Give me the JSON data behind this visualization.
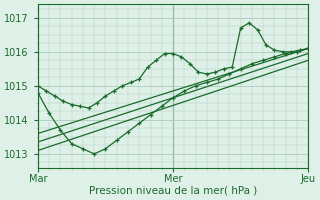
{
  "xlabel": "Pression niveau de la mer( hPa )",
  "bg_color": "#dff0e8",
  "grid_color": "#aaccbb",
  "line_color": "#1a6b2a",
  "xtick_labels": [
    "Mar",
    "Mer",
    "Jeu"
  ],
  "xtick_positions": [
    0,
    48,
    96
  ],
  "ylim": [
    1012.6,
    1017.4
  ],
  "yticks": [
    1013,
    1014,
    1015,
    1016,
    1017
  ],
  "xlim": [
    0,
    96
  ],
  "line1_x": [
    0,
    3,
    6,
    9,
    12,
    15,
    18,
    21,
    24,
    27,
    30,
    33,
    36,
    39,
    42,
    45,
    48,
    51,
    54,
    57,
    60,
    63,
    66,
    69,
    72,
    75,
    78,
    81,
    84,
    87,
    90,
    93,
    96
  ],
  "line1_y": [
    1015.0,
    1014.85,
    1014.7,
    1014.55,
    1014.45,
    1014.4,
    1014.35,
    1014.5,
    1014.7,
    1014.85,
    1015.0,
    1015.1,
    1015.2,
    1015.55,
    1015.75,
    1015.95,
    1015.95,
    1015.85,
    1015.65,
    1015.4,
    1015.35,
    1015.4,
    1015.5,
    1015.55,
    1016.7,
    1016.85,
    1016.65,
    1016.2,
    1016.05,
    1016.0,
    1016.0,
    1016.05,
    1016.1
  ],
  "line2_x": [
    0,
    4,
    8,
    12,
    16,
    20,
    24,
    28,
    32,
    36,
    40,
    44,
    48,
    52,
    56,
    60,
    64,
    68,
    72,
    76,
    80,
    84,
    88,
    92,
    96
  ],
  "line2_y": [
    1014.8,
    1014.2,
    1013.7,
    1013.3,
    1013.15,
    1013.0,
    1013.15,
    1013.4,
    1013.65,
    1013.9,
    1014.15,
    1014.4,
    1014.65,
    1014.85,
    1015.0,
    1015.1,
    1015.2,
    1015.35,
    1015.5,
    1015.65,
    1015.75,
    1015.85,
    1015.95,
    1016.0,
    1016.1
  ],
  "trend1_x": [
    0,
    96
  ],
  "trend1_y": [
    1013.6,
    1016.1
  ],
  "trend2_x": [
    0,
    96
  ],
  "trend2_y": [
    1013.35,
    1015.95
  ],
  "trend3_x": [
    0,
    96
  ],
  "trend3_y": [
    1013.1,
    1015.75
  ]
}
